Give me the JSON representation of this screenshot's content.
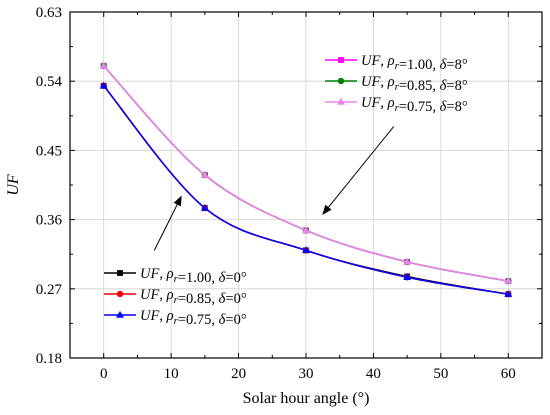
{
  "chart_data": {
    "type": "line",
    "xlabel": "Solar hour angle (°)",
    "ylabel": "UF",
    "xlim": [
      -5,
      65
    ],
    "ylim": [
      0.18,
      0.63
    ],
    "xticks": [
      0,
      10,
      20,
      30,
      40,
      50,
      60
    ],
    "yticks": [
      0.18,
      0.27,
      0.36,
      0.45,
      0.54,
      0.63
    ],
    "grid": true,
    "x": [
      0,
      15,
      30,
      45,
      60
    ],
    "series": [
      {
        "name": "UF, ρr=1.00, δ=0°",
        "symbol": "r",
        "values": [
          0.534,
          0.375,
          0.32,
          0.286,
          0.263
        ],
        "color": "#000000",
        "marker": "square"
      },
      {
        "name": "UF, ρr=0.85, δ=0°",
        "symbol": "r",
        "values": [
          0.534,
          0.375,
          0.32,
          0.285,
          0.263
        ],
        "color": "#ff0000",
        "marker": "circle"
      },
      {
        "name": "UF, ρr=0.75, δ=0°",
        "symbol": "r",
        "values": [
          0.534,
          0.375,
          0.32,
          0.285,
          0.263
        ],
        "color": "#0000ff",
        "marker": "triangle"
      },
      {
        "name": "UF, ρr=1.00, δ=8°",
        "symbol": "r",
        "values": [
          0.56,
          0.418,
          0.346,
          0.305,
          0.28
        ],
        "color": "#ff00ff",
        "marker": "square"
      },
      {
        "name": "UF, ρr=0.85, δ=8°",
        "symbol": "r",
        "values": [
          0.56,
          0.418,
          0.346,
          0.305,
          0.28
        ],
        "color": "#008000",
        "marker": "circle"
      },
      {
        "name": "UF, ρr=0.75, δ=8°",
        "symbol": "r",
        "values": [
          0.56,
          0.418,
          0.346,
          0.305,
          0.28
        ],
        "color": "#ee82ee",
        "marker": "triangle"
      }
    ],
    "legends": [
      {
        "placement": "top-right",
        "series": [
          3,
          4,
          5
        ]
      },
      {
        "placement": "bottom-left",
        "series": [
          0,
          1,
          2
        ]
      }
    ],
    "annotations": [
      {
        "type": "arrow",
        "from": [
          7.5,
          0.32
        ],
        "to": [
          11.5,
          0.39
        ],
        "label": ""
      },
      {
        "type": "arrow",
        "from": [
          43,
          0.481
        ],
        "to": [
          32.5,
          0.367
        ],
        "label": ""
      }
    ]
  }
}
